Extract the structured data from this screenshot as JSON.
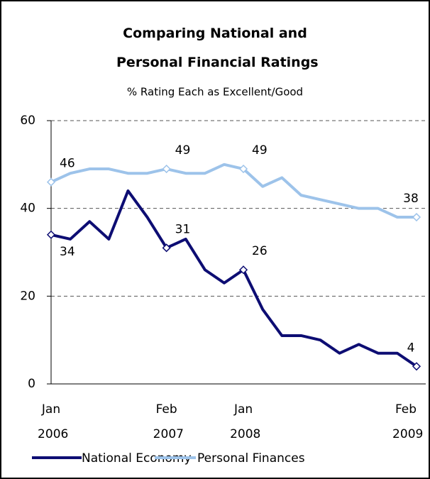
{
  "chart_data": {
    "type": "line",
    "title": "Comparing National and Personal Financial Ratings",
    "subtitle": "% Rating Each as Excellent/Good",
    "categories": [
      "Jan 2006",
      null,
      null,
      null,
      null,
      null,
      "Feb 2007",
      null,
      null,
      null,
      "Jan 2008",
      null,
      null,
      null,
      null,
      null,
      null,
      null,
      null,
      "Feb 2009"
    ],
    "series": [
      {
        "name": "National Economy",
        "color": "#0d0d73",
        "values": [
          34,
          33,
          37,
          33,
          44,
          38,
          31,
          33,
          26,
          23,
          26,
          17,
          11,
          11,
          10,
          7,
          9,
          7,
          7,
          4
        ],
        "value_labels": [
          "34",
          null,
          null,
          null,
          null,
          null,
          "31",
          null,
          null,
          null,
          "26",
          null,
          null,
          null,
          null,
          null,
          null,
          null,
          null,
          "4"
        ]
      },
      {
        "name": "Personal Finances",
        "color": "#9dc3ea",
        "values": [
          46,
          48,
          49,
          49,
          48,
          48,
          49,
          48,
          48,
          50,
          49,
          45,
          47,
          43,
          42,
          41,
          40,
          40,
          38,
          38
        ],
        "value_labels": [
          "46",
          null,
          null,
          null,
          null,
          null,
          "49",
          null,
          null,
          null,
          "49",
          null,
          null,
          null,
          null,
          null,
          null,
          null,
          null,
          "38"
        ]
      }
    ],
    "ylim": [
      0,
      60
    ],
    "yticks": [
      0,
      20,
      40,
      60
    ],
    "grid": true
  }
}
